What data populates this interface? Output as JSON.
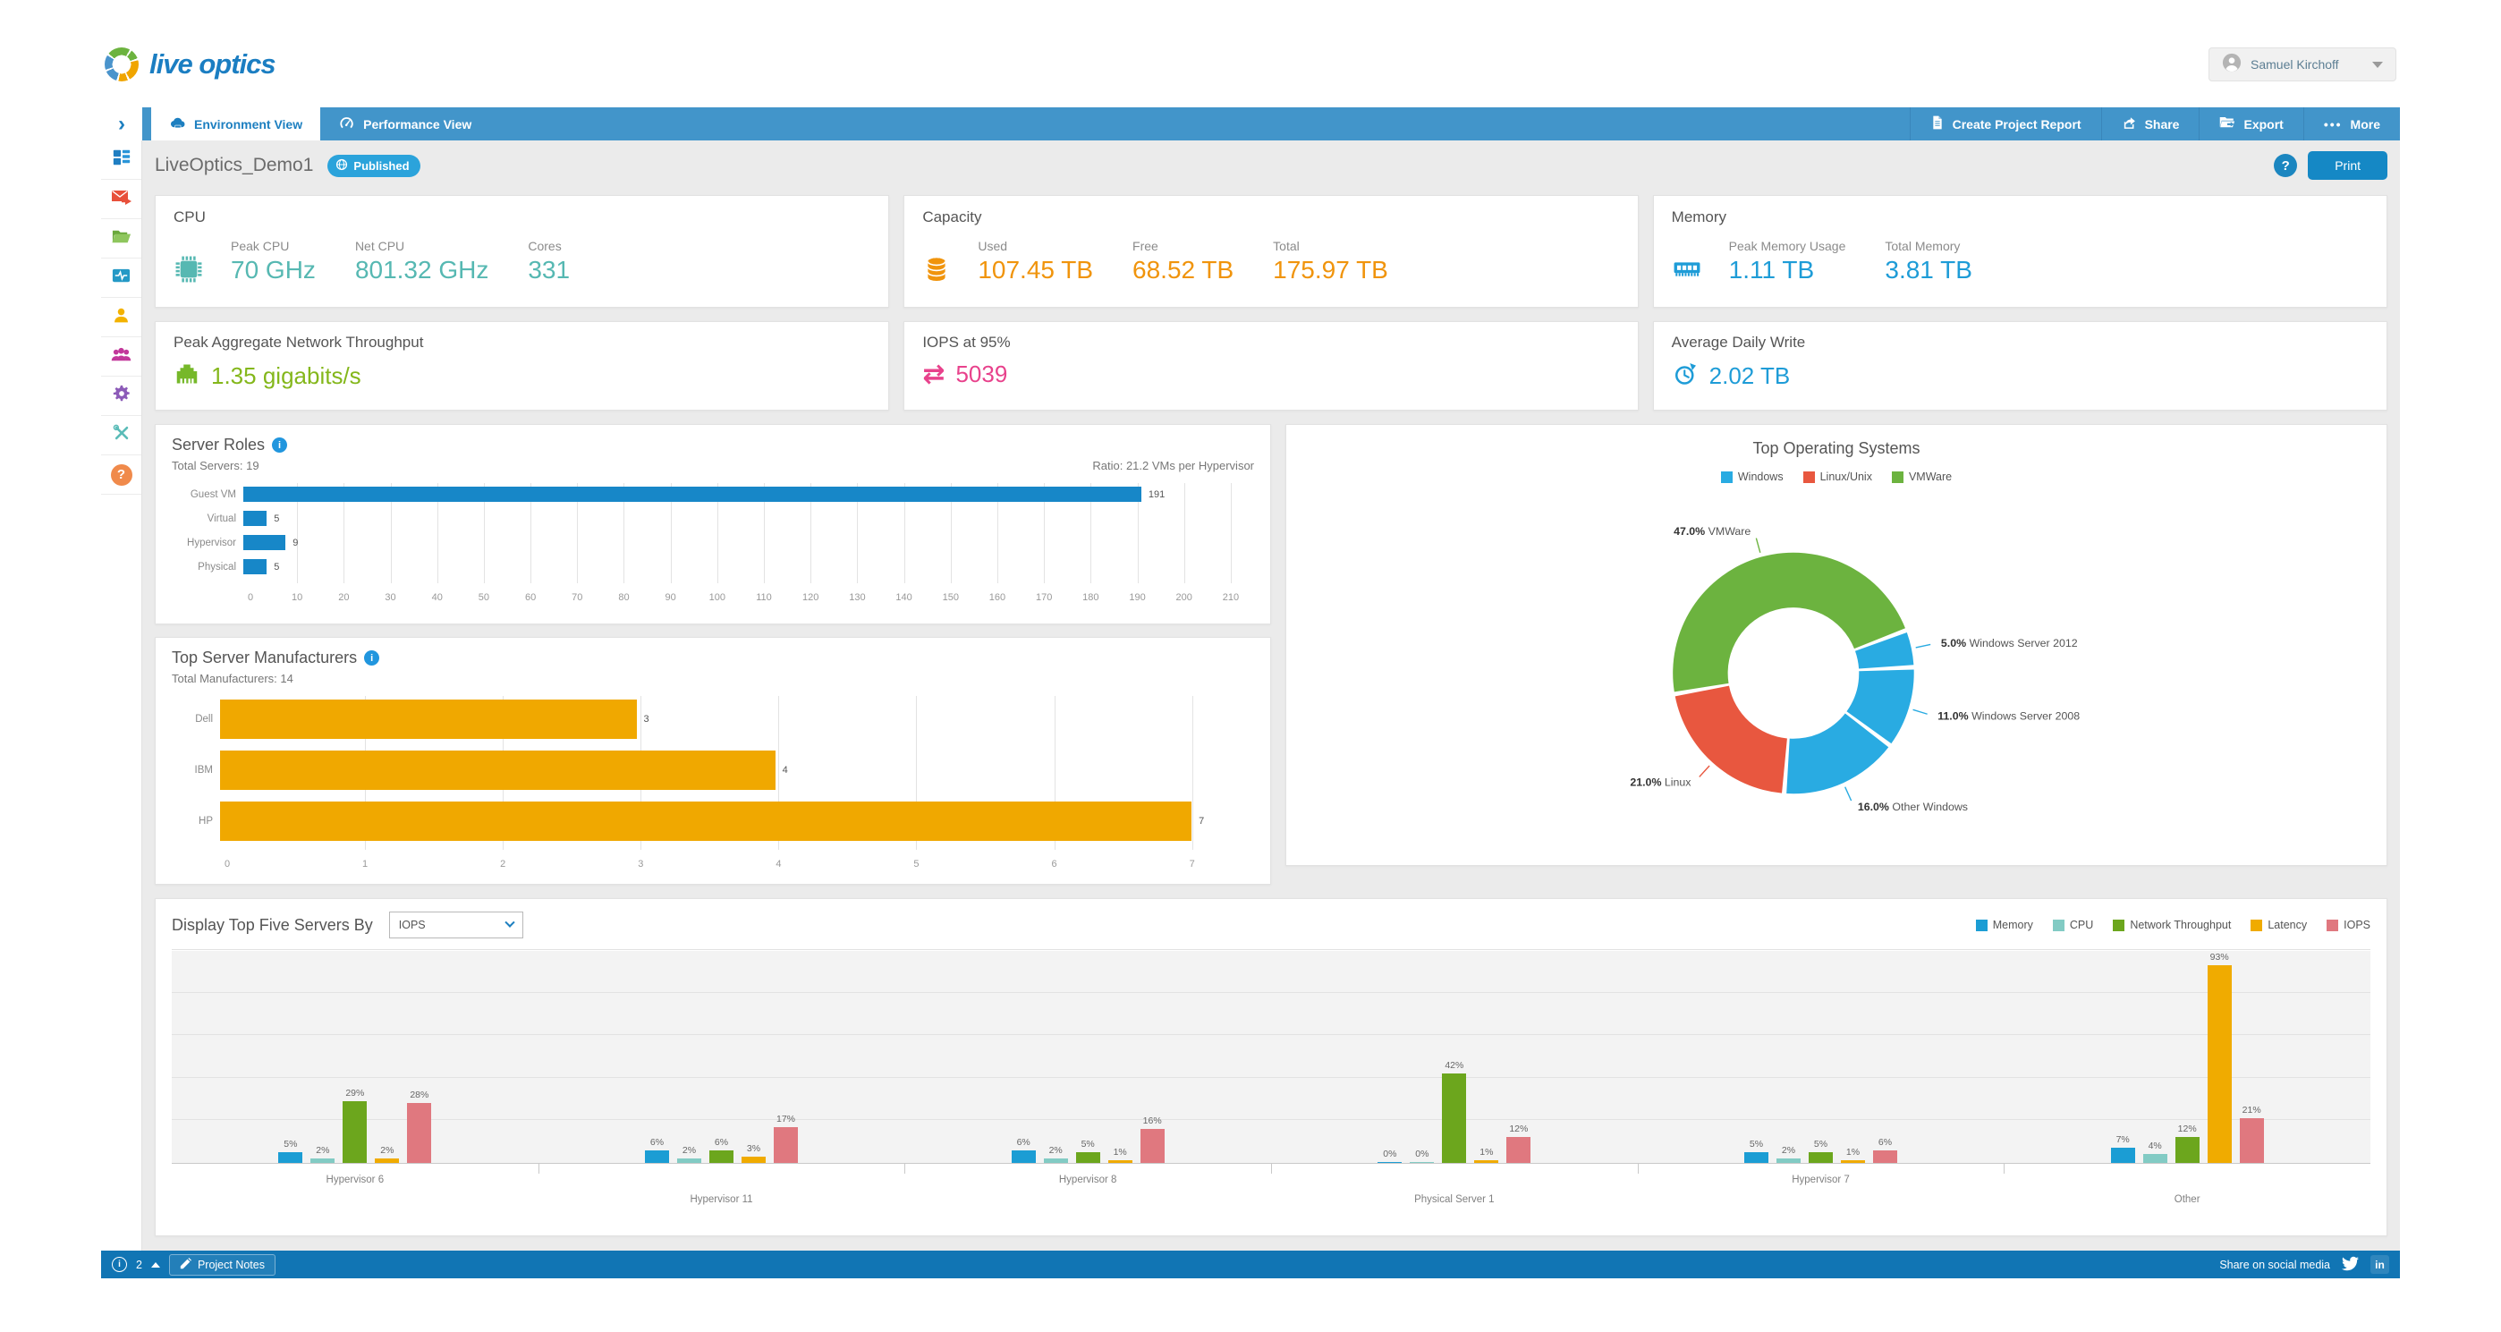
{
  "header": {
    "logo_text": "live optics",
    "user": {
      "name": "Samuel Kirchoff"
    }
  },
  "nav": {
    "tabs": [
      {
        "label": "Environment View",
        "active": true
      },
      {
        "label": "Performance View",
        "active": false
      }
    ],
    "actions": [
      {
        "label": "Create Project Report"
      },
      {
        "label": "Share"
      },
      {
        "label": "Export"
      },
      {
        "label": "More"
      }
    ]
  },
  "toolbar": {
    "project_title": "LiveOptics_Demo1",
    "published_label": "Published",
    "print_label": "Print",
    "help_label": "?"
  },
  "sidebar": {
    "icons": [
      "dashboard",
      "mail",
      "projects-folder",
      "activity-monitor",
      "user",
      "team",
      "settings-gear",
      "admin-tools",
      "help"
    ]
  },
  "summary_cards": [
    {
      "title": "CPU",
      "color": "#56b8b2",
      "metrics": [
        {
          "label": "Peak CPU",
          "value": "70 GHz"
        },
        {
          "label": "Net CPU",
          "value": "801.32 GHz"
        },
        {
          "label": "Cores",
          "value": "331"
        }
      ]
    },
    {
      "title": "Capacity",
      "color": "#f0940c",
      "metrics": [
        {
          "label": "Used",
          "value": "107.45 TB"
        },
        {
          "label": "Free",
          "value": "68.52 TB"
        },
        {
          "label": "Total",
          "value": "175.97 TB"
        }
      ]
    },
    {
      "title": "Memory",
      "color": "#1e9cd7",
      "metrics": [
        {
          "label": "Peak Memory Usage",
          "value": "1.11 TB"
        },
        {
          "label": "Total Memory",
          "value": "3.81 TB"
        }
      ]
    }
  ],
  "kpi_cards": [
    {
      "title": "Peak Aggregate Network Throughput",
      "value": "1.35 gigabits/s",
      "color": "#84b71b"
    },
    {
      "title": "IOPS at 95%",
      "value": "5039",
      "color": "#e8428c"
    },
    {
      "title": "Average Daily Write",
      "value": "2.02 TB",
      "color": "#1e9cd7"
    }
  ],
  "chart_data": [
    {
      "id": "server_roles",
      "type": "bar",
      "orientation": "horizontal",
      "title": "Server Roles",
      "subtitle_left": "Total Servers: 19",
      "subtitle_right": "Ratio: 21.2 VMs per Hypervisor",
      "categories": [
        "Guest VM",
        "Virtual",
        "Hypervisor",
        "Physical"
      ],
      "values": [
        191,
        5,
        9,
        5
      ],
      "xlim": [
        0,
        210
      ],
      "xmax_display": 215,
      "xtick_step": 10,
      "bar_color": "#1787c8",
      "grid": true
    },
    {
      "id": "manufacturers",
      "type": "bar",
      "orientation": "horizontal",
      "title": "Top Server Manufacturers",
      "subtitle_left": "Total Manufacturers: 14",
      "categories": [
        "Dell",
        "IBM",
        "HP"
      ],
      "values": [
        3,
        4,
        7
      ],
      "xlim": [
        0,
        7
      ],
      "xmax_display": 7.45,
      "xtick_step": 1,
      "bar_color": "#f0a800",
      "grid": true
    },
    {
      "id": "top_os",
      "type": "pie",
      "donut": true,
      "title": "Top Operating Systems",
      "legend": [
        {
          "label": "Windows",
          "color": "#29abe2"
        },
        {
          "label": "Linux/Unix",
          "color": "#e8573f"
        },
        {
          "label": "VMWare",
          "color": "#6cb33f"
        }
      ],
      "slices": [
        {
          "label": "VMWare",
          "pct": 47.0,
          "color": "#6cb33f"
        },
        {
          "label": "Windows Server 2012",
          "pct": 5.0,
          "color": "#29abe2"
        },
        {
          "label": "Windows Server 2008",
          "pct": 11.0,
          "color": "#29abe2"
        },
        {
          "label": "Other Windows",
          "pct": 16.0,
          "color": "#29abe2"
        },
        {
          "label": "Linux",
          "pct": 21.0,
          "color": "#e8573f"
        }
      ],
      "start_angle_deg": 260
    },
    {
      "id": "top5",
      "type": "bar",
      "orientation": "vertical",
      "grouped": true,
      "control_label": "Display Top Five Servers By",
      "control_value": "IOPS",
      "categories": [
        "Hypervisor 6",
        "Hypervisor 11",
        "Hypervisor 8",
        "Physical Server 1",
        "Hypervisor 7",
        "Other"
      ],
      "series": [
        {
          "name": "Memory",
          "color": "#1b9dd4",
          "values": [
            5,
            6,
            6,
            0,
            5,
            7
          ]
        },
        {
          "name": "CPU",
          "color": "#82cbc4",
          "values": [
            2,
            2,
            2,
            0,
            2,
            4
          ]
        },
        {
          "name": "Network Throughput",
          "color": "#6ca61d",
          "values": [
            29,
            6,
            5,
            42,
            5,
            12
          ]
        },
        {
          "name": "Latency",
          "color": "#f0ab00",
          "values": [
            2,
            3,
            1,
            1,
            1,
            93
          ]
        },
        {
          "name": "IOPS",
          "color": "#e0787f",
          "values": [
            28,
            17,
            16,
            12,
            6,
            21
          ]
        }
      ],
      "ylim": [
        0,
        100
      ],
      "grid_step_pct": 20,
      "value_suffix": "%",
      "grid": true,
      "legend_position": "top-right"
    }
  ],
  "footer": {
    "pager_count": "2",
    "notes_label": "Project Notes",
    "share_label": "Share on social media"
  }
}
